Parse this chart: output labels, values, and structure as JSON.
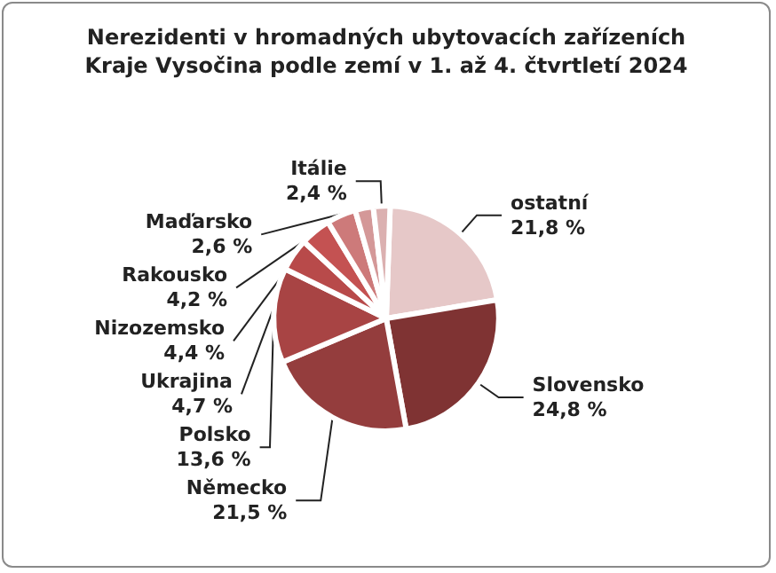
{
  "chart_data": {
    "type": "pie",
    "title": "Nerezidenti v hromadných ubytovacích zařízeních\nKraje Vysočina podle zemí v 1. až 4. čtvrtletí 2024",
    "categories": [
      "ostatní",
      "Slovensko",
      "Německo",
      "Polsko",
      "Ukrajina",
      "Nizozemsko",
      "Rakousko",
      "Maďarsko",
      "Itálie"
    ],
    "values": [
      21.8,
      24.8,
      21.5,
      13.6,
      4.7,
      4.4,
      4.2,
      2.6,
      2.4
    ],
    "value_labels": [
      "21,8 %",
      "24,8 %",
      "21,5 %",
      "13,6 %",
      "4,7 %",
      "4,4 %",
      "4,2 %",
      "2,6 %",
      "2,4 %"
    ],
    "colors": [
      "#e6c8c8",
      "#7f3333",
      "#943d3d",
      "#a84444",
      "#b84a4a",
      "#c45252",
      "#cd7a7a",
      "#d49898",
      "#dbb0b0"
    ],
    "legend": false
  }
}
